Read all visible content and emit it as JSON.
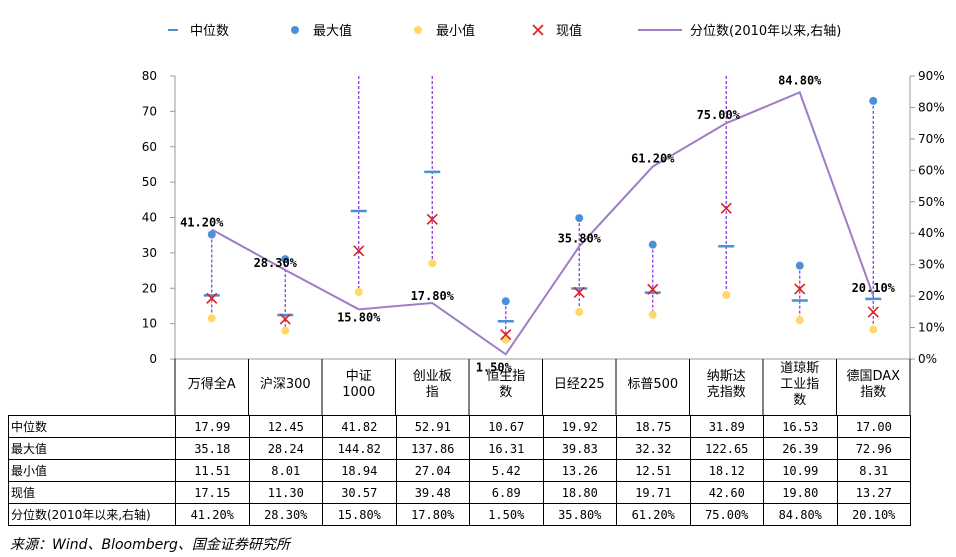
{
  "legend": {
    "median": "中位数",
    "max": "最大值",
    "min": "最小值",
    "current": "现值",
    "percentile": "分位数(2010年以来,右轴)"
  },
  "colors": {
    "median": "#4a90d9",
    "max": "#4a90d9",
    "min": "#ffd966",
    "current": "#e02020",
    "percentile": "#a07cc5",
    "range": "#8a2be2"
  },
  "chart_data": {
    "type": "line",
    "categories": [
      "万得全A",
      "沪深300",
      "中证1000",
      "创业板指",
      "恒生指数",
      "日经225",
      "标普500",
      "纳斯达克指数",
      "道琼斯工业指数",
      "德国DAX指数"
    ],
    "category_lines": [
      [
        "万得全A"
      ],
      [
        "沪深300"
      ],
      [
        "中证",
        "1000"
      ],
      [
        "创业板",
        "指"
      ],
      [
        "恒生指",
        "数"
      ],
      [
        "日经225"
      ],
      [
        "标普500"
      ],
      [
        "纳斯达",
        "克指数"
      ],
      [
        "道琼斯",
        "工业指",
        "数"
      ],
      [
        "德国DAX",
        "指数"
      ]
    ],
    "series": [
      {
        "name": "中位数",
        "marker": "dash",
        "values": [
          17.99,
          12.45,
          41.82,
          52.91,
          10.67,
          19.92,
          18.75,
          31.89,
          16.53,
          17.0
        ]
      },
      {
        "name": "最大值",
        "marker": "dot",
        "values": [
          35.18,
          28.24,
          144.82,
          137.86,
          16.31,
          39.83,
          32.32,
          122.65,
          26.39,
          72.96
        ]
      },
      {
        "name": "最小值",
        "marker": "dot",
        "values": [
          11.51,
          8.01,
          18.94,
          27.04,
          5.42,
          13.26,
          12.51,
          18.12,
          10.99,
          8.31
        ]
      },
      {
        "name": "现值",
        "marker": "x",
        "values": [
          17.15,
          11.3,
          30.57,
          39.48,
          6.89,
          18.8,
          19.71,
          42.6,
          19.8,
          13.27
        ]
      },
      {
        "name": "分位数(2010年以来,右轴)",
        "axis": "right",
        "values": [
          41.2,
          28.3,
          15.8,
          17.8,
          1.5,
          35.8,
          61.2,
          75.0,
          84.8,
          20.1
        ]
      }
    ],
    "percentile_labels": [
      "41.20%",
      "28.30%",
      "15.80%",
      "17.80%",
      "1.50%",
      "35.80%",
      "61.20%",
      "75.00%",
      "84.80%",
      "20.10%"
    ],
    "y_left": {
      "min": 0,
      "max": 80,
      "ticks": [
        "0",
        "10",
        "20",
        "30",
        "40",
        "50",
        "60",
        "70",
        "80"
      ]
    },
    "y_right": {
      "min": 0,
      "max": 90,
      "ticks": [
        "0%",
        "10%",
        "20%",
        "30%",
        "40%",
        "50%",
        "60%",
        "70%",
        "80%",
        "90%"
      ]
    }
  },
  "table": {
    "rows": [
      {
        "label": "中位数",
        "cells": [
          "17.99",
          "12.45",
          "41.82",
          "52.91",
          "10.67",
          "19.92",
          "18.75",
          "31.89",
          "16.53",
          "17.00"
        ]
      },
      {
        "label": "最大值",
        "cells": [
          "35.18",
          "28.24",
          "144.82",
          "137.86",
          "16.31",
          "39.83",
          "32.32",
          "122.65",
          "26.39",
          "72.96"
        ]
      },
      {
        "label": "最小值",
        "cells": [
          "11.51",
          "8.01",
          "18.94",
          "27.04",
          "5.42",
          "13.26",
          "12.51",
          "18.12",
          "10.99",
          "8.31"
        ]
      },
      {
        "label": "现值",
        "cells": [
          "17.15",
          "11.30",
          "30.57",
          "39.48",
          "6.89",
          "18.80",
          "19.71",
          "42.60",
          "19.80",
          "13.27"
        ]
      },
      {
        "label": "分位数(2010年以来,右轴)",
        "cells": [
          "41.20%",
          "28.30%",
          "15.80%",
          "17.80%",
          "1.50%",
          "35.80%",
          "61.20%",
          "75.00%",
          "84.80%",
          "20.10%"
        ]
      }
    ]
  },
  "source": "来源：Wind、Bloomberg、国金证券研究所"
}
